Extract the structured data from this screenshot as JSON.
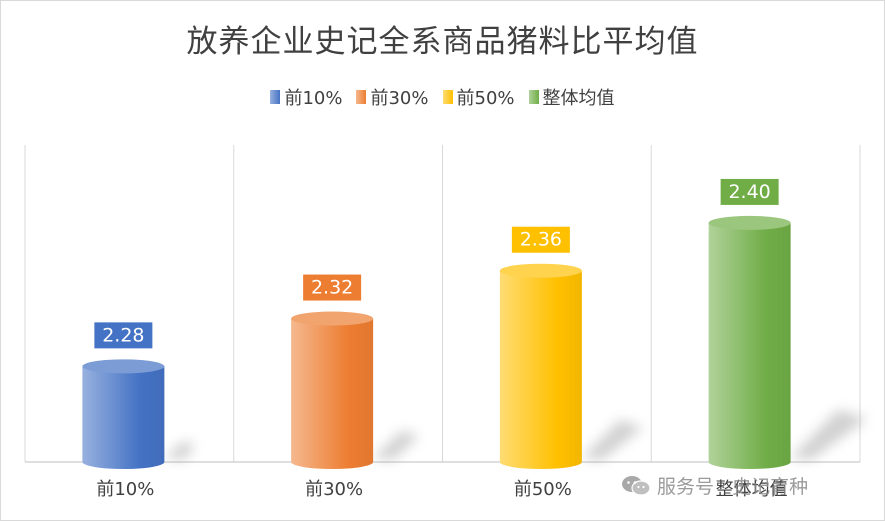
{
  "chart_data": {
    "type": "bar",
    "title": "放养企业史记全系商品猪料比平均值",
    "categories": [
      "前10%",
      "前30%",
      "前50%",
      "整体均值"
    ],
    "values": [
      2.28,
      2.32,
      2.36,
      2.4
    ],
    "data_labels": [
      "2.28",
      "2.32",
      "2.36",
      "2.40"
    ],
    "legend": [
      "前10%",
      "前30%",
      "前50%",
      "整体均值"
    ],
    "legend_position": "top",
    "style": "3d-cylinder",
    "grid": "vertical",
    "colors": [
      "#4472C4",
      "#ED7D31",
      "#FFC000",
      "#70AD47"
    ]
  },
  "watermark": {
    "text": "服务号 · 史记育种",
    "icon": "wechat-icon"
  }
}
